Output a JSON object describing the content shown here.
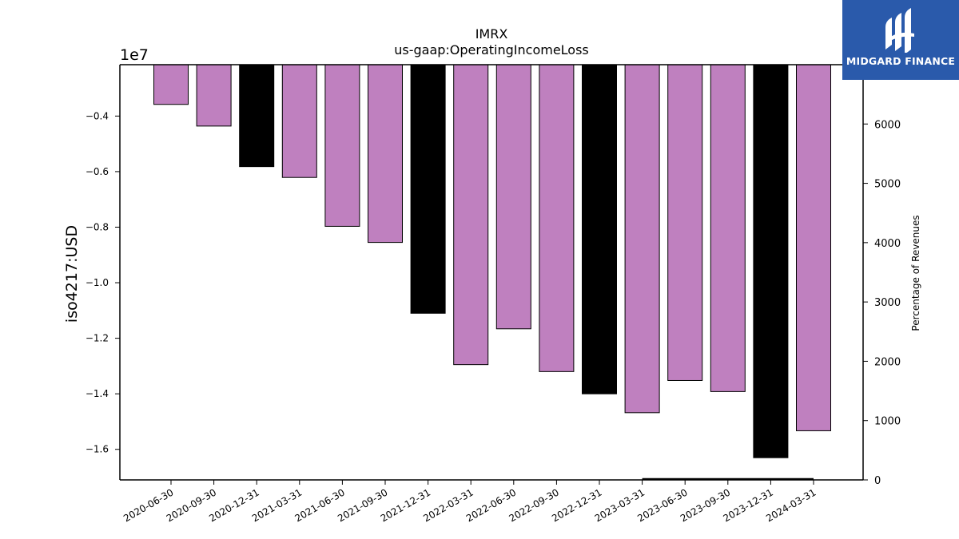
{
  "chart_data": {
    "type": "bar",
    "title": "IMRX",
    "subtitle": "us-gaap:OperatingIncomeLoss",
    "ylabel": "iso4217:USD",
    "y_offset_label": "1e7",
    "y2label": "Percentage of Revenues",
    "ylim": [
      -17100000,
      -2150000
    ],
    "y_ticks": [
      -0.4,
      -0.6,
      -0.8,
      -1.0,
      -1.2,
      -1.4,
      -1.6
    ],
    "y_tick_labels": [
      "−0.4",
      "−0.6",
      "−0.8",
      "−1.0",
      "−1.2",
      "−1.4",
      "−1.6"
    ],
    "y2lim": [
      0,
      7000
    ],
    "y2_ticks": [
      0,
      1000,
      2000,
      3000,
      4000,
      5000,
      6000
    ],
    "categories": [
      "2020-06-30",
      "2020-09-30",
      "2020-12-31",
      "2021-03-31",
      "2021-06-30",
      "2021-09-30",
      "2021-12-31",
      "2022-03-31",
      "2022-06-30",
      "2022-09-30",
      "2022-12-31",
      "2023-03-31",
      "2023-06-30",
      "2023-09-30",
      "2023-12-31",
      "2024-03-31"
    ],
    "values": [
      -3580000,
      -4360000,
      -5820000,
      -6210000,
      -7970000,
      -8550000,
      -11100000,
      -12950000,
      -11660000,
      -13200000,
      -14000000,
      -14680000,
      -13520000,
      -13920000,
      -16300000,
      -15330000
    ],
    "bar_colors": [
      "#bf80bf",
      "#bf80bf",
      "#000000",
      "#bf80bf",
      "#bf80bf",
      "#bf80bf",
      "#000000",
      "#bf80bf",
      "#bf80bf",
      "#bf80bf",
      "#000000",
      "#bf80bf",
      "#bf80bf",
      "#bf80bf",
      "#000000",
      "#bf80bf"
    ],
    "secondary_series": {
      "x_start": "2023-03-31",
      "x_end": "2024-03-31",
      "values": [
        0,
        0,
        0,
        0,
        0
      ]
    },
    "grid": false,
    "legend": "none"
  },
  "logo": {
    "text": "MIDGARD FINANCE",
    "color": "#2a5aab"
  }
}
